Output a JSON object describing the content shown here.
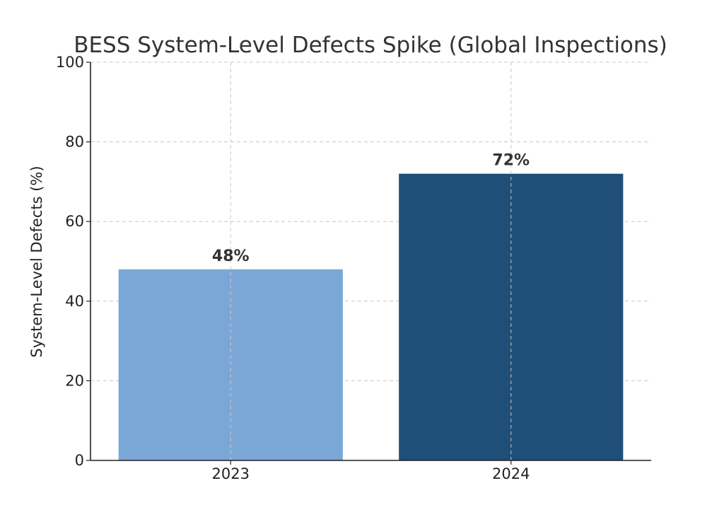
{
  "chart_data": {
    "type": "bar",
    "title": "BESS System-Level Defects Spike (Global Inspections)",
    "xlabel": "",
    "ylabel": "System-Level Defects (%)",
    "categories": [
      "2023",
      "2024"
    ],
    "values": [
      48,
      72
    ],
    "data_labels": [
      "48%",
      "72%"
    ],
    "colors": [
      "#7ba7d7",
      "#1f4e79"
    ],
    "ylim": [
      0,
      100
    ],
    "yticks": [
      0,
      20,
      40,
      60,
      80,
      100
    ],
    "grid": true,
    "legend": "none"
  }
}
